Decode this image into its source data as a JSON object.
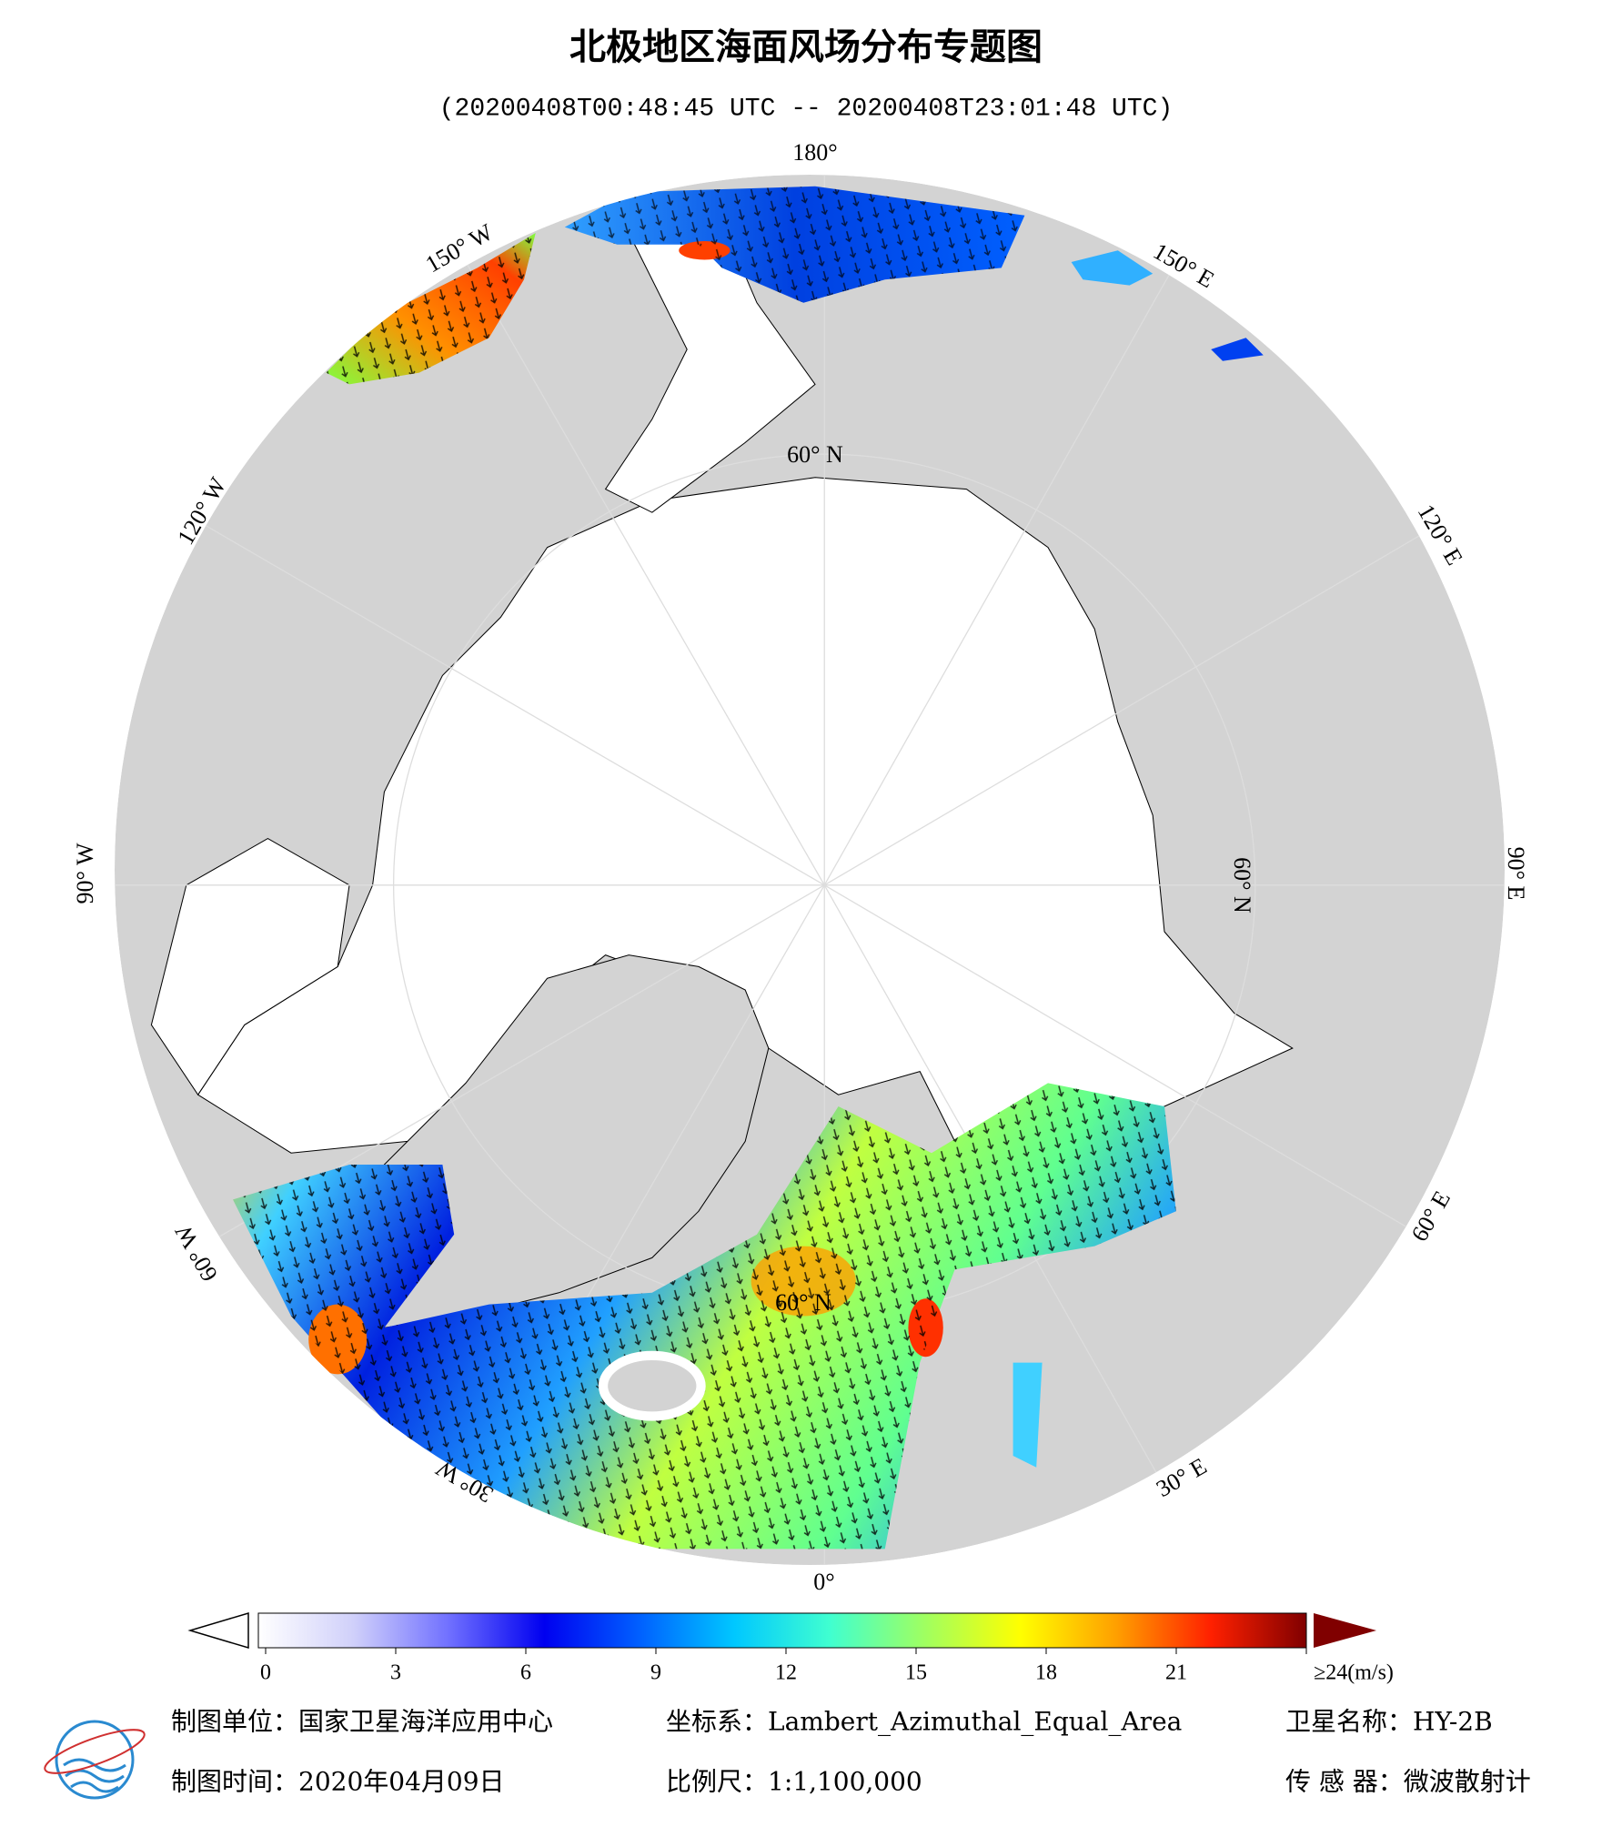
{
  "header": {
    "title": "北极地区海面风场分布专题图",
    "subtitle": "(20200408T00:48:45 UTC -- 20200408T23:01:48 UTC)"
  },
  "map": {
    "labels": [
      "180°",
      "150° W",
      "120° W",
      "90° W",
      "60° W",
      "30° W",
      "0°",
      "30° E",
      "60° E",
      "90° E",
      "120° E",
      "150° E",
      "60° N",
      "60° N",
      "60° N"
    ]
  },
  "colorbar": {
    "lim": [
      0,
      24
    ],
    "ticks": [
      0,
      3,
      6,
      9,
      12,
      15,
      18,
      21,
      {
        "value": 24,
        "label": "≥24(m/s)"
      }
    ],
    "colors": [
      "#ffffff",
      "#d0d0fa",
      "#7070ff",
      "#0000f0",
      "#0060ff",
      "#00c8ff",
      "#40ffd0",
      "#a0ff60",
      "#ffff00",
      "#ffa000",
      "#ff2000",
      "#800000"
    ]
  },
  "footer": {
    "rows": [
      [
        "制图单位：国家卫星海洋应用中心",
        "坐标系：Lambert_Azimuthal_Equal_Area",
        "卫星名称：HY-2B"
      ],
      [
        "制图时间：2020年04月09日",
        "比例尺：1:1,100,000",
        "传 感 器：微波散射计"
      ]
    ]
  }
}
